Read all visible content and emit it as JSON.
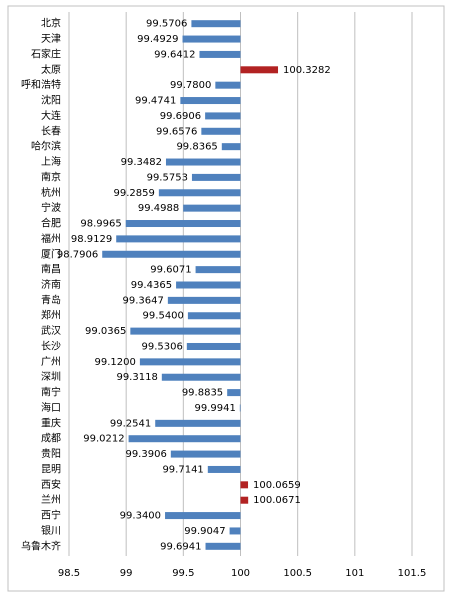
{
  "chart_data": {
    "type": "bar",
    "orientation": "horizontal",
    "categories": [
      "北京",
      "天津",
      "石家庄",
      "太原",
      "呼和浩特",
      "沈阳",
      "大连",
      "长春",
      "哈尔滨",
      "上海",
      "南京",
      "杭州",
      "宁波",
      "合肥",
      "福州",
      "厦门",
      "南昌",
      "济南",
      "青岛",
      "郑州",
      "武汉",
      "长沙",
      "广州",
      "深圳",
      "南宁",
      "海口",
      "重庆",
      "成都",
      "贵阳",
      "昆明",
      "西安",
      "兰州",
      "西宁",
      "银川",
      "乌鲁木齐"
    ],
    "values": [
      99.5706,
      99.4929,
      99.6412,
      100.3282,
      99.78,
      99.4741,
      99.6906,
      99.6576,
      99.8365,
      99.3482,
      99.5753,
      99.2859,
      99.4988,
      98.9965,
      98.9129,
      98.7906,
      99.6071,
      99.4365,
      99.3647,
      99.54,
      99.0365,
      99.5306,
      99.12,
      99.3118,
      99.8835,
      99.9941,
      99.2541,
      99.0212,
      99.3906,
      99.7141,
      100.0659,
      100.0671,
      99.34,
      99.9047,
      99.6941
    ],
    "value_labels": [
      "99.5706",
      "99.4929",
      "99.6412",
      "100.3282",
      "99.7800",
      "99.4741",
      "99.6906",
      "99.6576",
      "99.8365",
      "99.3482",
      "99.5753",
      "99.2859",
      "99.4988",
      "98.9965",
      "98.9129",
      "98.7906",
      "99.6071",
      "99.4365",
      "99.3647",
      "99.5400",
      "99.0365",
      "99.5306",
      "99.1200",
      "99.3118",
      "99.8835",
      "99.9941",
      "99.2541",
      "99.0212",
      "99.3906",
      "99.7141",
      "100.0659",
      "100.0671",
      "99.3400",
      "99.9047",
      "99.6941"
    ],
    "baseline": 100,
    "color": "#4f81bd",
    "above_color": "#b22222",
    "xlim": [
      98.5,
      101.5
    ],
    "xticks": [
      98.5,
      99,
      99.5,
      100,
      100.5,
      101,
      101.5
    ],
    "grid": true
  }
}
